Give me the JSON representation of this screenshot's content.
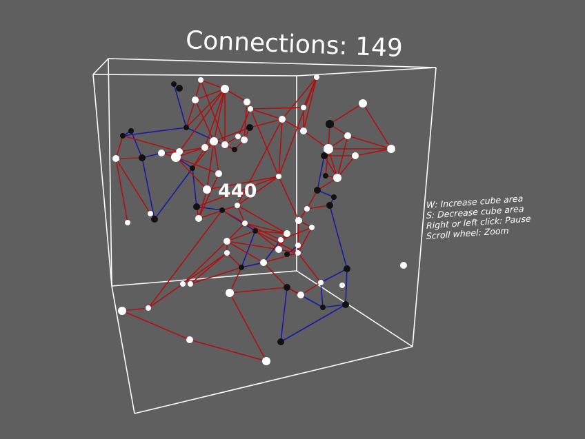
{
  "hud": {
    "connections_label": "Connections: 149",
    "counter": "440"
  },
  "controls": [
    "W: Increase cube area",
    "S: Decrease cube area",
    "Right or left click: Pause",
    "Scroll wheel: Zoom"
  ],
  "colors": {
    "background": "#5f5f5f",
    "cube_edge": "#ffffff",
    "link_red": "#b01010",
    "link_blue": "#1a1aa0",
    "node_white": "#ffffff",
    "node_black": "#111111"
  }
}
